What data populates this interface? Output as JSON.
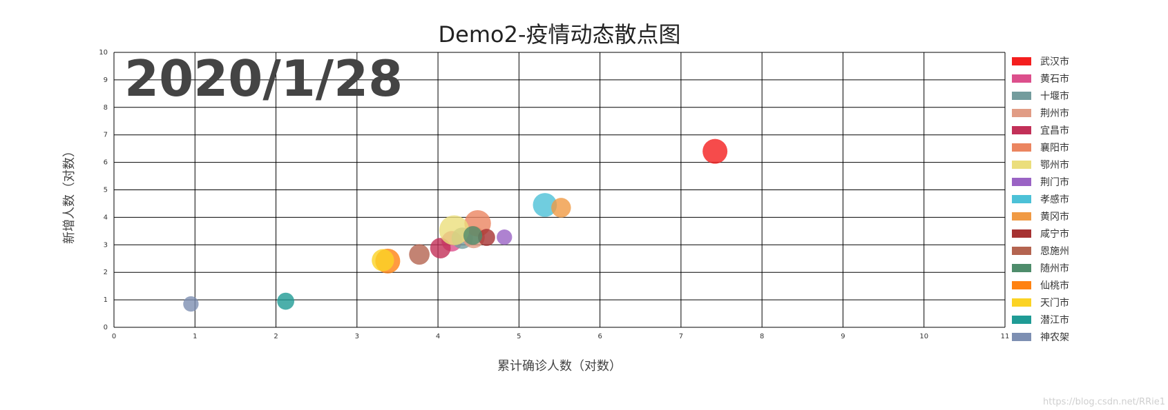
{
  "chart_data": {
    "type": "scatter",
    "title": "Demo2-疫情动态散点图",
    "date_label": "2020/1/28",
    "xlabel": "累计确诊人数（对数）",
    "ylabel": "新增人数（对数）",
    "xlim": [
      0,
      11
    ],
    "ylim": [
      0,
      10
    ],
    "xticks": [
      0,
      1,
      2,
      3,
      4,
      5,
      6,
      7,
      8,
      9,
      10,
      11
    ],
    "yticks": [
      0,
      1,
      2,
      3,
      4,
      5,
      6,
      7,
      8,
      9,
      10
    ],
    "grid": true,
    "legend_position": "right",
    "series": [
      {
        "name": "武汉市",
        "color": "#f41e1e",
        "x": 7.42,
        "y": 6.4,
        "size": 2.9
      },
      {
        "name": "黄石市",
        "color": "#dc4f8c",
        "x": 4.17,
        "y": 3.13,
        "size": 2.4
      },
      {
        "name": "十堰市",
        "color": "#739c9d",
        "x": 4.3,
        "y": 3.24,
        "size": 2.5
      },
      {
        "name": "荆州市",
        "color": "#e19c85",
        "x": 4.44,
        "y": 3.28,
        "size": 2.6
      },
      {
        "name": "宜昌市",
        "color": "#c23058",
        "x": 4.03,
        "y": 2.88,
        "size": 2.4
      },
      {
        "name": "襄阳市",
        "color": "#eb8560",
        "x": 4.49,
        "y": 3.78,
        "size": 3.1
      },
      {
        "name": "鄂州市",
        "color": "#ebde7c",
        "x": 4.2,
        "y": 3.53,
        "size": 3.5
      },
      {
        "name": "荆门市",
        "color": "#9a63c4",
        "x": 4.82,
        "y": 3.28,
        "size": 1.8
      },
      {
        "name": "孝感市",
        "color": "#4cc1d7",
        "x": 5.32,
        "y": 4.45,
        "size": 2.8
      },
      {
        "name": "黄冈市",
        "color": "#f09a44",
        "x": 5.52,
        "y": 4.35,
        "size": 2.3
      },
      {
        "name": "咸宁市",
        "color": "#a63232",
        "x": 4.6,
        "y": 3.27,
        "size": 2.0
      },
      {
        "name": "恩施州",
        "color": "#b46450",
        "x": 3.77,
        "y": 2.65,
        "size": 2.4
      },
      {
        "name": "随州市",
        "color": "#4e8c6b",
        "x": 4.43,
        "y": 3.34,
        "size": 2.2
      },
      {
        "name": "仙桃市",
        "color": "#ff8211",
        "x": 3.38,
        "y": 2.41,
        "size": 2.9
      },
      {
        "name": "天门市",
        "color": "#fbd324",
        "x": 3.32,
        "y": 2.44,
        "size": 2.6
      },
      {
        "name": "潜江市",
        "color": "#1f9b95",
        "x": 2.12,
        "y": 0.95,
        "size": 2.0
      },
      {
        "name": "神农架",
        "color": "#7d8fb2",
        "x": 0.95,
        "y": 0.85,
        "size": 1.8
      }
    ]
  },
  "watermark": "https://blog.csdn.net/RRie1"
}
